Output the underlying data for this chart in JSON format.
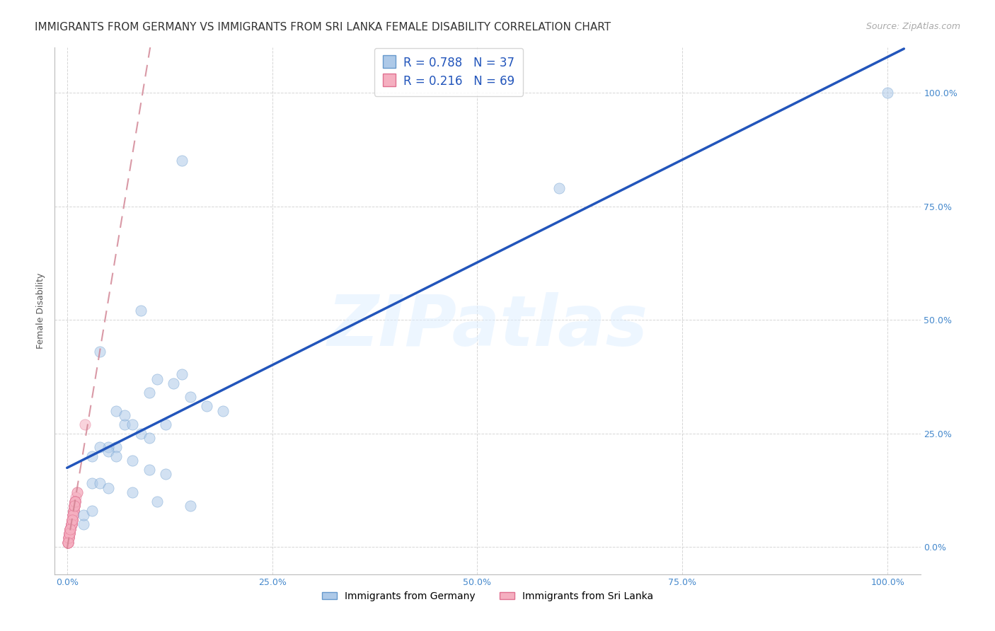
{
  "title": "IMMIGRANTS FROM GERMANY VS IMMIGRANTS FROM SRI LANKA FEMALE DISABILITY CORRELATION CHART",
  "source": "Source: ZipAtlas.com",
  "ylabel": "Female Disability",
  "germany_R": 0.788,
  "germany_N": 37,
  "srilanka_R": 0.216,
  "srilanka_N": 69,
  "germany_color": "#adc9e8",
  "germany_edge_color": "#6699cc",
  "germany_line_color": "#2255bb",
  "srilanka_color": "#f5afc0",
  "srilanka_edge_color": "#e07090",
  "srilanka_line_color": "#d08090",
  "watermark": "ZIPatlas",
  "germany_x": [
    0.02,
    0.14,
    0.09,
    0.14,
    0.04,
    0.06,
    0.07,
    0.1,
    0.11,
    0.13,
    0.15,
    0.17,
    0.19,
    0.07,
    0.08,
    0.09,
    0.1,
    0.06,
    0.05,
    0.12,
    0.04,
    0.05,
    0.03,
    0.06,
    0.08,
    0.1,
    0.12,
    0.03,
    0.04,
    0.05,
    0.08,
    0.11,
    0.15,
    0.6,
    1.0,
    0.02,
    0.03
  ],
  "germany_y": [
    0.05,
    0.85,
    0.52,
    0.38,
    0.43,
    0.3,
    0.27,
    0.34,
    0.37,
    0.36,
    0.33,
    0.31,
    0.3,
    0.29,
    0.27,
    0.25,
    0.24,
    0.22,
    0.22,
    0.27,
    0.22,
    0.21,
    0.2,
    0.2,
    0.19,
    0.17,
    0.16,
    0.14,
    0.14,
    0.13,
    0.12,
    0.1,
    0.09,
    0.79,
    1.0,
    0.07,
    0.08
  ],
  "srilanka_x": [
    0.005,
    0.008,
    0.012,
    0.003,
    0.006,
    0.009,
    0.004,
    0.007,
    0.01,
    0.002,
    0.005,
    0.008,
    0.011,
    0.003,
    0.006,
    0.009,
    0.012,
    0.001,
    0.004,
    0.007,
    0.01,
    0.002,
    0.005,
    0.008,
    0.003,
    0.006,
    0.009,
    0.001,
    0.004,
    0.007,
    0.01,
    0.002,
    0.005,
    0.008,
    0.003,
    0.006,
    0.009,
    0.001,
    0.004,
    0.007,
    0.01,
    0.002,
    0.005,
    0.008,
    0.003,
    0.006,
    0.009,
    0.001,
    0.004,
    0.007,
    0.01,
    0.002,
    0.005,
    0.008,
    0.003,
    0.006,
    0.009,
    0.001,
    0.004,
    0.007,
    0.01,
    0.002,
    0.005,
    0.022,
    0.003,
    0.006,
    0.009,
    0.001,
    0.004
  ],
  "srilanka_y": [
    0.05,
    0.08,
    0.12,
    0.03,
    0.06,
    0.09,
    0.04,
    0.07,
    0.1,
    0.02,
    0.05,
    0.08,
    0.11,
    0.03,
    0.06,
    0.09,
    0.12,
    0.01,
    0.04,
    0.07,
    0.1,
    0.02,
    0.05,
    0.08,
    0.03,
    0.06,
    0.09,
    0.01,
    0.04,
    0.07,
    0.1,
    0.02,
    0.05,
    0.08,
    0.03,
    0.06,
    0.09,
    0.01,
    0.04,
    0.07,
    0.1,
    0.02,
    0.05,
    0.08,
    0.03,
    0.06,
    0.09,
    0.01,
    0.04,
    0.07,
    0.1,
    0.02,
    0.05,
    0.08,
    0.03,
    0.06,
    0.09,
    0.01,
    0.04,
    0.07,
    0.1,
    0.02,
    0.05,
    0.27,
    0.03,
    0.06,
    0.09,
    0.01,
    0.04
  ],
  "xlim": [
    -0.015,
    1.04
  ],
  "ylim": [
    -0.06,
    1.1
  ],
  "xticks": [
    0.0,
    0.25,
    0.5,
    0.75,
    1.0
  ],
  "yticks": [
    0.0,
    0.25,
    0.5,
    0.75,
    1.0
  ],
  "xtick_labels": [
    "0.0%",
    "25.0%",
    "50.0%",
    "75.0%",
    "100.0%"
  ],
  "ytick_right_labels": [
    "0.0%",
    "25.0%",
    "50.0%",
    "75.0%",
    "100.0%"
  ],
  "dot_size": 120,
  "dot_alpha": 0.55,
  "title_fontsize": 11,
  "tick_fontsize": 9,
  "source_fontsize": 9
}
